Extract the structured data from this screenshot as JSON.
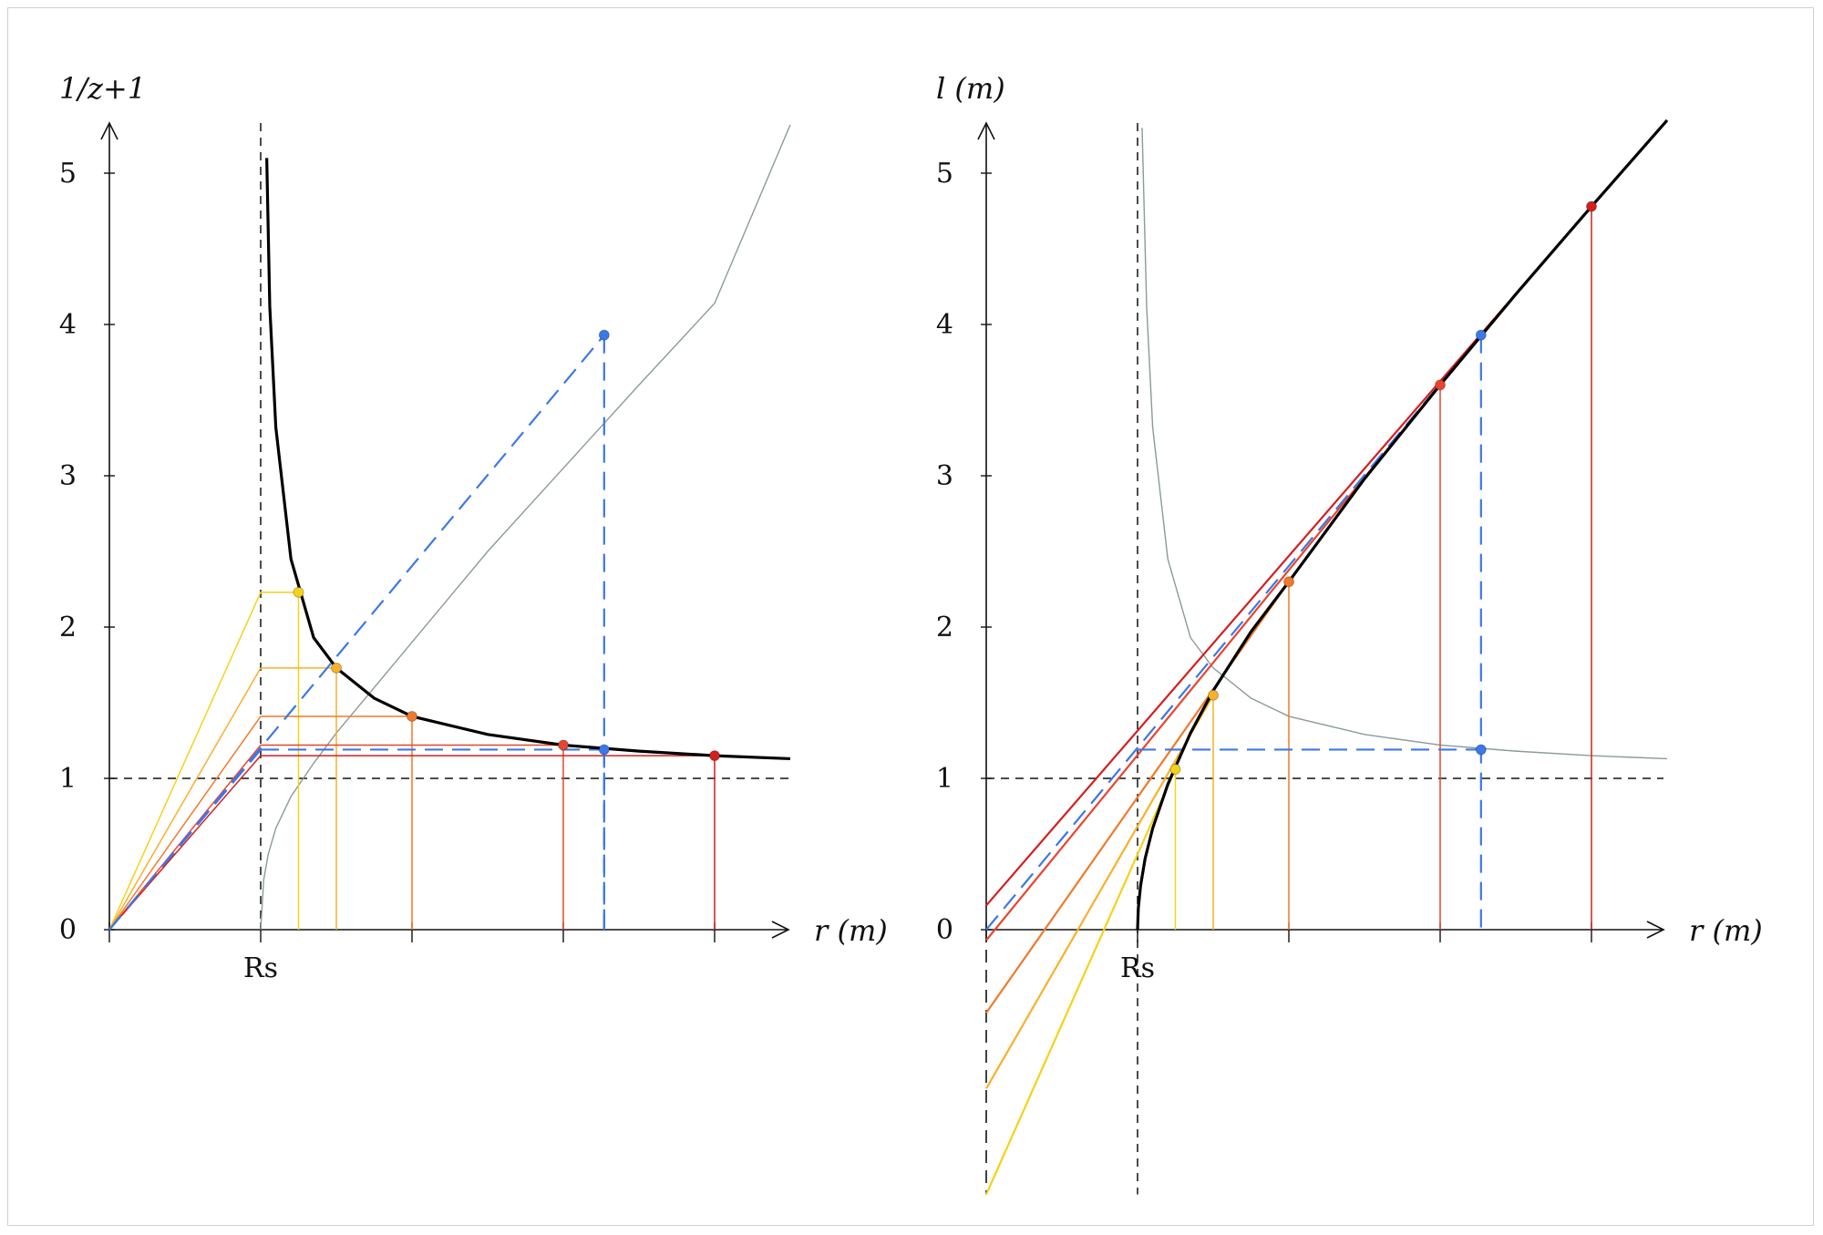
{
  "chart_data": [
    {
      "type": "line",
      "ylabel": "1/z+1",
      "xlabel": "r (m)",
      "x_special_tick": "Rs",
      "y_ticks": [
        "0",
        "1",
        "2",
        "3",
        "4",
        "5"
      ],
      "ylim": [
        0,
        5.3
      ],
      "xlim": [
        0,
        4.5
      ],
      "rs": 1,
      "colors": {
        "yellow": "#f5d21a",
        "light_orange": "#f7b12a",
        "orange": "#f07a2a",
        "red_orange": "#e8452e",
        "red": "#d41f1f",
        "blue": "#3b78e8",
        "gray": "#8c9a9a",
        "black": "#000000"
      },
      "series": [
        {
          "key": "redshift-curve",
          "color": "black",
          "r": [
            1.04,
            1.06,
            1.1,
            1.2,
            1.35,
            1.5,
            1.75,
            2,
            2.5,
            3,
            3.5,
            4,
            4.5
          ],
          "y": [
            5.1,
            4.12,
            3.32,
            2.45,
            1.93,
            1.73,
            1.53,
            1.41,
            1.29,
            1.22,
            1.18,
            1.15,
            1.13
          ]
        },
        {
          "key": "reference-curve",
          "color": "gray",
          "r": [
            1,
            1.02,
            1.05,
            1.1,
            1.2,
            1.35,
            1.5,
            1.75,
            2,
            2.5,
            3,
            3.5,
            4,
            4.5
          ],
          "y": [
            0,
            0.33,
            0.5,
            0.67,
            0.88,
            1.1,
            1.3,
            1.6,
            1.9,
            2.5,
            3.05,
            3.6,
            4.14,
            5.32
          ]
        }
      ],
      "markers": [
        {
          "color": "yellow",
          "r": 1.25,
          "y": 2.23
        },
        {
          "color": "light_orange",
          "r": 1.5,
          "y": 1.73
        },
        {
          "color": "orange",
          "r": 2,
          "y": 1.41
        },
        {
          "color": "red_orange",
          "r": 3,
          "y": 1.22
        },
        {
          "color": "blue",
          "r": 3.27,
          "y": 1.19
        },
        {
          "color": "red",
          "r": 4,
          "y": 1.15
        },
        {
          "color": "blue",
          "r": 3.27,
          "y": 3.93
        }
      ]
    },
    {
      "type": "line",
      "ylabel": "l (m)",
      "xlabel": "r (m)",
      "x_special_tick": "Rs",
      "y_ticks": [
        "0",
        "1",
        "2",
        "3",
        "4",
        "5"
      ],
      "ylim": [
        -1.75,
        5.3
      ],
      "xlim": [
        0,
        4.5
      ],
      "rs": 1,
      "series": [
        {
          "key": "proper-distance-curve",
          "color": "black",
          "r": [
            1,
            1.005,
            1.02,
            1.05,
            1.1,
            1.2,
            1.35,
            1.5,
            1.75,
            2,
            2.5,
            3,
            3.5,
            4,
            4.5
          ],
          "l": [
            0,
            0.14,
            0.29,
            0.47,
            0.67,
            0.96,
            1.3,
            1.58,
            1.97,
            2.3,
            2.98,
            3.6,
            4.2,
            4.78,
            5.35
          ]
        },
        {
          "key": "reference-curve",
          "color": "gray",
          "r": [
            1.03,
            1.06,
            1.1,
            1.2,
            1.35,
            1.5,
            1.75,
            2,
            2.5,
            3,
            3.5,
            4,
            4.5
          ],
          "l": [
            5.3,
            4.12,
            3.32,
            2.45,
            1.93,
            1.73,
            1.53,
            1.41,
            1.29,
            1.22,
            1.18,
            1.15,
            1.13
          ]
        }
      ],
      "tangents": [
        {
          "color": "yellow",
          "r": 1.25,
          "l": 1.06,
          "intercept": -1.75
        },
        {
          "color": "light_orange",
          "r": 1.5,
          "l": 1.55,
          "intercept": -1.05
        },
        {
          "color": "orange",
          "r": 2,
          "l": 2.3,
          "intercept": -0.55
        },
        {
          "color": "red_orange",
          "r": 3,
          "l": 3.6,
          "intercept": -0.07
        },
        {
          "color": "red",
          "r": 4,
          "l": 4.78,
          "intercept": 0.16
        },
        {
          "color": "blue",
          "r": 3.27,
          "l": 3.93,
          "intercept": 0
        }
      ]
    }
  ]
}
